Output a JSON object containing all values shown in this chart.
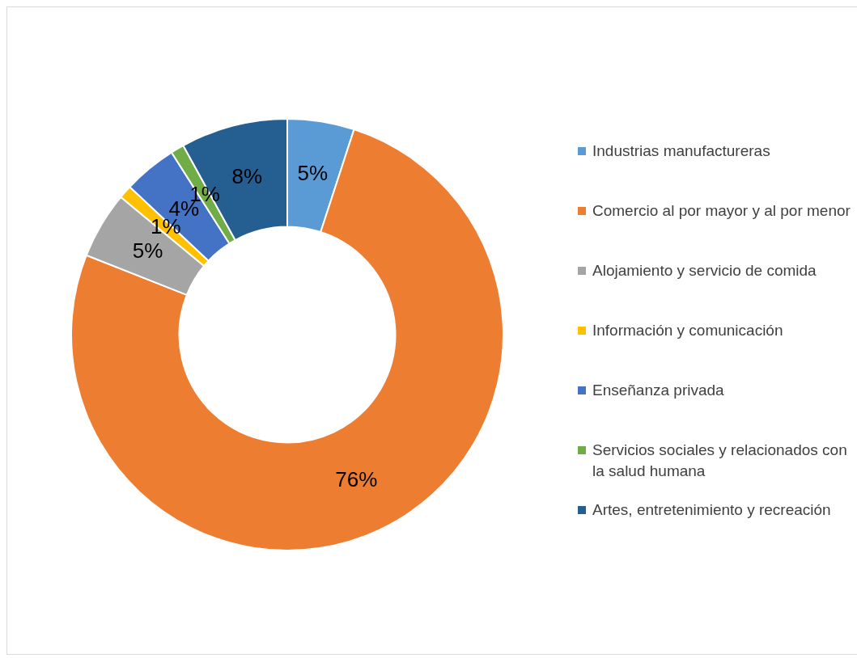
{
  "chart_data": {
    "type": "donut",
    "categories": [
      "Industrias manufactureras",
      "Comercio al por mayor y al por menor",
      "Alojamiento y servicio de comida",
      "Información y comunicación",
      "Enseñanza privada",
      "Servicios sociales y relacionados con la salud humana",
      "Artes, entretenimiento y recreación"
    ],
    "values": [
      5,
      76,
      5,
      1,
      4,
      1,
      8
    ],
    "value_labels": [
      "5%",
      "76%",
      "5%",
      "1%",
      "4%",
      "1%",
      "8%"
    ],
    "colors": [
      "#5b9bd5",
      "#ed7d31",
      "#a5a5a5",
      "#ffc000",
      "#4472c4",
      "#70ad47",
      "#255e91"
    ],
    "legend": "right"
  }
}
